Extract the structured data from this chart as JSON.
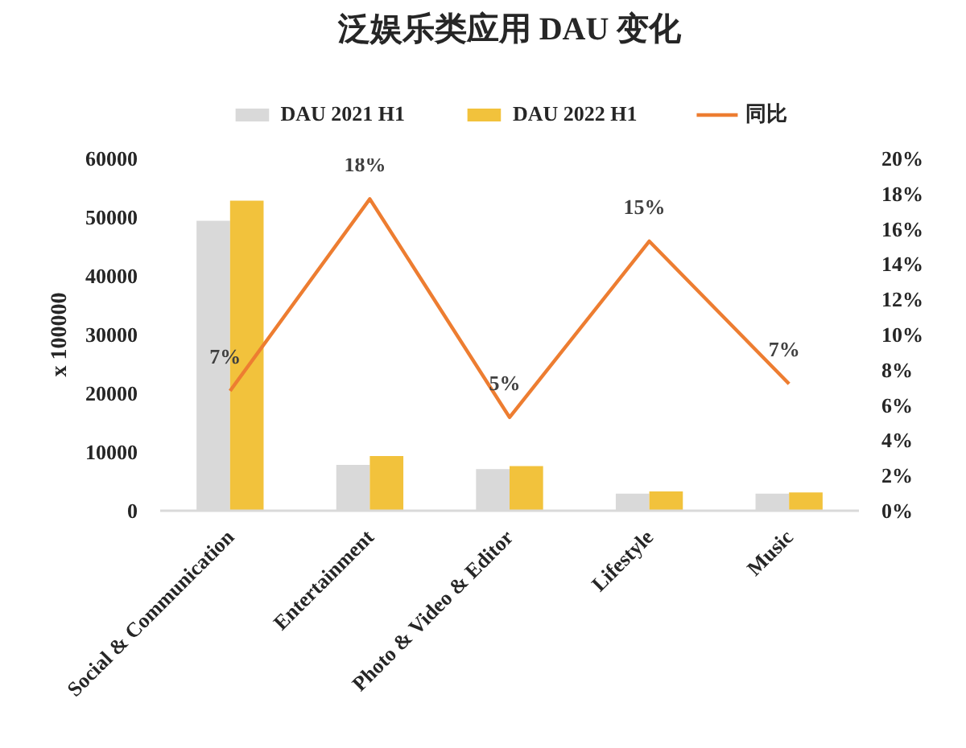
{
  "chart_data": {
    "type": "bar",
    "title": "泛娱乐类应用 DAU 变化",
    "ylabel": "x 100000",
    "categories": [
      "Social & Communication",
      "Entertainment",
      "Photo & Video & Editor",
      "Lifestyle",
      "Music"
    ],
    "series": [
      {
        "name": "DAU 2021 H1",
        "color": "#d9d9d9",
        "values": [
          49400,
          7800,
          7100,
          2900,
          2900
        ]
      },
      {
        "name": "DAU 2022 H1",
        "color": "#f2c23c",
        "values": [
          52800,
          9300,
          7600,
          3300,
          3100
        ]
      },
      {
        "name": "同比",
        "type": "line",
        "axis": "y2",
        "color": "#ed7d31",
        "values": [
          6.8,
          17.7,
          5.3,
          15.3,
          7.2
        ],
        "value_labels": [
          "7%",
          "18%",
          "5%",
          "15%",
          "7%"
        ]
      }
    ],
    "ylim": [
      0,
      60000
    ],
    "yticks": [
      0,
      10000,
      20000,
      30000,
      40000,
      50000,
      60000
    ],
    "y2lim": [
      0,
      20
    ],
    "y2ticks": [
      {
        "value": 0,
        "label": "0%"
      },
      {
        "value": 2,
        "label": "2%"
      },
      {
        "value": 4,
        "label": "4%"
      },
      {
        "value": 6,
        "label": "6%"
      },
      {
        "value": 8,
        "label": "8%"
      },
      {
        "value": 10,
        "label": "10%"
      },
      {
        "value": 12,
        "label": "12%"
      },
      {
        "value": 14,
        "label": "14%"
      },
      {
        "value": 16,
        "label": "16%"
      },
      {
        "value": 18,
        "label": "18%"
      },
      {
        "value": 20,
        "label": "20%"
      }
    ],
    "grid": false,
    "legend": "top"
  }
}
